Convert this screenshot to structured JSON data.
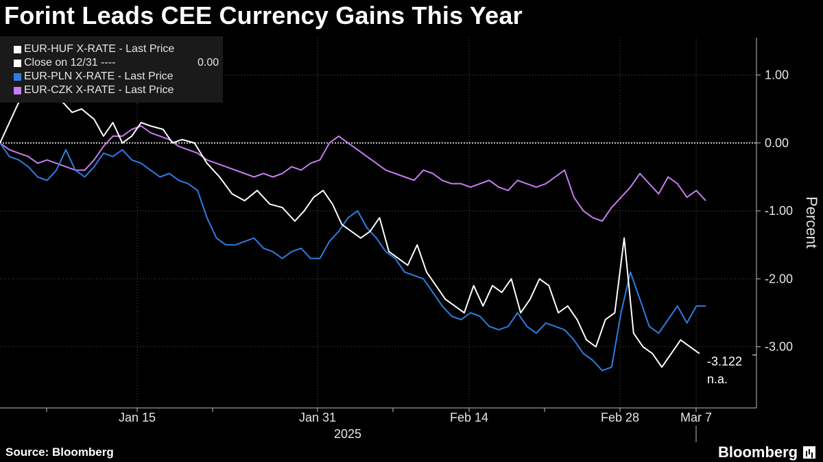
{
  "title": "Forint Leads CEE Currency Gains This Year",
  "footer": {
    "source": "Source: Bloomberg",
    "brand": "Bloomberg"
  },
  "legend": {
    "items": [
      {
        "label": "EUR-HUF X-RATE - Last Price",
        "color": "#ffffff"
      },
      {
        "label": "Close on 12/31 ----",
        "color": "#ffffff",
        "value": "0.00"
      },
      {
        "label": "EUR-PLN X-RATE - Last Price",
        "color": "#2e7de1"
      },
      {
        "label": "EUR-CZK X-RATE - Last Price",
        "color": "#c77ef0"
      }
    ]
  },
  "chart_data": {
    "type": "line",
    "ylabel": "Percent",
    "ylim": [
      -3.9,
      1.55
    ],
    "y_ticks": [
      1.0,
      0.0,
      -1.0,
      -2.0,
      -3.0
    ],
    "y_tick_labels": [
      "1.00",
      "0.00",
      "-1.00",
      "-2.00",
      "-3.00"
    ],
    "x_tick_labels": [
      "Jan 15",
      "Jan 31",
      "Feb 14",
      "Feb 28",
      "Mar 7"
    ],
    "x_year_label": "2025",
    "reference_line": {
      "label": "Close on 12/31",
      "value": 0.0
    },
    "last_value_label": "-3.122",
    "na_label": "n.a.",
    "series": [
      {
        "name": "EUR-HUF X-RATE - Last Price",
        "color": "#ffffff",
        "points": [
          [
            0,
            0.0
          ],
          [
            3,
            0.3
          ],
          [
            6,
            0.6
          ],
          [
            8,
            0.9
          ],
          [
            10,
            1.0
          ],
          [
            12,
            0.8
          ],
          [
            14,
            1.1
          ],
          [
            17,
            0.8
          ],
          [
            20,
            0.6
          ],
          [
            23,
            0.45
          ],
          [
            26,
            0.5
          ],
          [
            30,
            0.35
          ],
          [
            33,
            0.1
          ],
          [
            36,
            0.3
          ],
          [
            39,
            0.0
          ],
          [
            42,
            0.1
          ],
          [
            45,
            0.3
          ],
          [
            48,
            0.25
          ],
          [
            52,
            0.2
          ],
          [
            55,
            0.0
          ],
          [
            58,
            0.05
          ],
          [
            62,
            0.0
          ],
          [
            66,
            -0.3
          ],
          [
            70,
            -0.5
          ],
          [
            74,
            -0.75
          ],
          [
            78,
            -0.85
          ],
          [
            82,
            -0.7
          ],
          [
            86,
            -0.9
          ],
          [
            90,
            -0.95
          ],
          [
            94,
            -1.15
          ],
          [
            97,
            -1.0
          ],
          [
            100,
            -0.8
          ],
          [
            103,
            -0.7
          ],
          [
            106,
            -0.9
          ],
          [
            109,
            -1.2
          ],
          [
            112,
            -1.3
          ],
          [
            115,
            -1.4
          ],
          [
            118,
            -1.3
          ],
          [
            121,
            -1.1
          ],
          [
            124,
            -1.6
          ],
          [
            127,
            -1.7
          ],
          [
            130,
            -1.8
          ],
          [
            133,
            -1.5
          ],
          [
            136,
            -1.9
          ],
          [
            139,
            -2.1
          ],
          [
            142,
            -2.3
          ],
          [
            145,
            -2.4
          ],
          [
            148,
            -2.5
          ],
          [
            151,
            -2.1
          ],
          [
            154,
            -2.4
          ],
          [
            157,
            -2.1
          ],
          [
            160,
            -2.2
          ],
          [
            163,
            -2.0
          ],
          [
            166,
            -2.5
          ],
          [
            169,
            -2.3
          ],
          [
            172,
            -2.0
          ],
          [
            175,
            -2.1
          ],
          [
            178,
            -2.5
          ],
          [
            181,
            -2.4
          ],
          [
            184,
            -2.6
          ],
          [
            187,
            -2.9
          ],
          [
            190,
            -3.0
          ],
          [
            193,
            -2.6
          ],
          [
            196,
            -2.5
          ],
          [
            199,
            -1.4
          ],
          [
            202,
            -2.8
          ],
          [
            205,
            -3.0
          ],
          [
            208,
            -3.1
          ],
          [
            211,
            -3.3
          ],
          [
            214,
            -3.1
          ],
          [
            217,
            -2.9
          ],
          [
            220,
            -3.0
          ],
          [
            223,
            -3.1
          ]
        ]
      },
      {
        "name": "EUR-PLN X-RATE - Last Price",
        "color": "#2e7de1",
        "points": [
          [
            0,
            0.0
          ],
          [
            3,
            -0.2
          ],
          [
            6,
            -0.25
          ],
          [
            9,
            -0.35
          ],
          [
            12,
            -0.5
          ],
          [
            15,
            -0.55
          ],
          [
            18,
            -0.4
          ],
          [
            21,
            -0.1
          ],
          [
            24,
            -0.4
          ],
          [
            27,
            -0.5
          ],
          [
            30,
            -0.35
          ],
          [
            33,
            -0.15
          ],
          [
            36,
            -0.2
          ],
          [
            39,
            -0.1
          ],
          [
            42,
            -0.25
          ],
          [
            45,
            -0.3
          ],
          [
            48,
            -0.4
          ],
          [
            51,
            -0.5
          ],
          [
            54,
            -0.45
          ],
          [
            57,
            -0.55
          ],
          [
            60,
            -0.6
          ],
          [
            63,
            -0.7
          ],
          [
            66,
            -1.1
          ],
          [
            69,
            -1.4
          ],
          [
            72,
            -1.5
          ],
          [
            75,
            -1.5
          ],
          [
            78,
            -1.45
          ],
          [
            81,
            -1.4
          ],
          [
            84,
            -1.55
          ],
          [
            87,
            -1.6
          ],
          [
            90,
            -1.7
          ],
          [
            93,
            -1.6
          ],
          [
            96,
            -1.55
          ],
          [
            99,
            -1.7
          ],
          [
            102,
            -1.7
          ],
          [
            105,
            -1.45
          ],
          [
            108,
            -1.3
          ],
          [
            111,
            -1.1
          ],
          [
            114,
            -1.0
          ],
          [
            117,
            -1.25
          ],
          [
            120,
            -1.4
          ],
          [
            123,
            -1.6
          ],
          [
            126,
            -1.7
          ],
          [
            129,
            -1.9
          ],
          [
            132,
            -1.95
          ],
          [
            135,
            -2.0
          ],
          [
            138,
            -2.2
          ],
          [
            141,
            -2.4
          ],
          [
            144,
            -2.55
          ],
          [
            147,
            -2.6
          ],
          [
            150,
            -2.5
          ],
          [
            153,
            -2.55
          ],
          [
            156,
            -2.7
          ],
          [
            159,
            -2.75
          ],
          [
            162,
            -2.7
          ],
          [
            165,
            -2.5
          ],
          [
            168,
            -2.7
          ],
          [
            171,
            -2.8
          ],
          [
            174,
            -2.65
          ],
          [
            177,
            -2.7
          ],
          [
            180,
            -2.75
          ],
          [
            183,
            -2.9
          ],
          [
            186,
            -3.1
          ],
          [
            189,
            -3.2
          ],
          [
            192,
            -3.35
          ],
          [
            195,
            -3.3
          ],
          [
            198,
            -2.5
          ],
          [
            201,
            -1.9
          ],
          [
            204,
            -2.3
          ],
          [
            207,
            -2.7
          ],
          [
            210,
            -2.8
          ],
          [
            213,
            -2.6
          ],
          [
            216,
            -2.4
          ],
          [
            219,
            -2.65
          ],
          [
            222,
            -2.4
          ],
          [
            225,
            -2.4
          ]
        ]
      },
      {
        "name": "EUR-CZK X-RATE - Last Price",
        "color": "#c77ef0",
        "points": [
          [
            0,
            0.0
          ],
          [
            3,
            -0.1
          ],
          [
            6,
            -0.15
          ],
          [
            9,
            -0.2
          ],
          [
            12,
            -0.3
          ],
          [
            15,
            -0.25
          ],
          [
            18,
            -0.3
          ],
          [
            21,
            -0.35
          ],
          [
            24,
            -0.4
          ],
          [
            27,
            -0.4
          ],
          [
            30,
            -0.25
          ],
          [
            33,
            -0.05
          ],
          [
            36,
            0.1
          ],
          [
            39,
            0.1
          ],
          [
            42,
            0.2
          ],
          [
            45,
            0.25
          ],
          [
            48,
            0.15
          ],
          [
            51,
            0.1
          ],
          [
            54,
            0.05
          ],
          [
            57,
            -0.05
          ],
          [
            60,
            -0.1
          ],
          [
            63,
            -0.15
          ],
          [
            66,
            -0.25
          ],
          [
            69,
            -0.3
          ],
          [
            72,
            -0.35
          ],
          [
            75,
            -0.4
          ],
          [
            78,
            -0.45
          ],
          [
            81,
            -0.5
          ],
          [
            84,
            -0.45
          ],
          [
            87,
            -0.5
          ],
          [
            90,
            -0.45
          ],
          [
            93,
            -0.35
          ],
          [
            96,
            -0.4
          ],
          [
            99,
            -0.3
          ],
          [
            102,
            -0.25
          ],
          [
            105,
            0.0
          ],
          [
            108,
            0.1
          ],
          [
            111,
            0.0
          ],
          [
            114,
            -0.1
          ],
          [
            117,
            -0.2
          ],
          [
            120,
            -0.3
          ],
          [
            123,
            -0.4
          ],
          [
            126,
            -0.45
          ],
          [
            129,
            -0.5
          ],
          [
            132,
            -0.55
          ],
          [
            135,
            -0.4
          ],
          [
            138,
            -0.45
          ],
          [
            141,
            -0.55
          ],
          [
            144,
            -0.6
          ],
          [
            147,
            -0.6
          ],
          [
            150,
            -0.65
          ],
          [
            153,
            -0.6
          ],
          [
            156,
            -0.55
          ],
          [
            159,
            -0.65
          ],
          [
            162,
            -0.7
          ],
          [
            165,
            -0.55
          ],
          [
            168,
            -0.6
          ],
          [
            171,
            -0.65
          ],
          [
            174,
            -0.6
          ],
          [
            177,
            -0.5
          ],
          [
            180,
            -0.4
          ],
          [
            183,
            -0.8
          ],
          [
            186,
            -1.0
          ],
          [
            189,
            -1.1
          ],
          [
            192,
            -1.15
          ],
          [
            195,
            -0.95
          ],
          [
            198,
            -0.8
          ],
          [
            201,
            -0.65
          ],
          [
            204,
            -0.45
          ],
          [
            207,
            -0.6
          ],
          [
            210,
            -0.75
          ],
          [
            213,
            -0.5
          ],
          [
            216,
            -0.6
          ],
          [
            219,
            -0.8
          ],
          [
            222,
            -0.7
          ],
          [
            225,
            -0.85
          ]
        ]
      }
    ]
  }
}
